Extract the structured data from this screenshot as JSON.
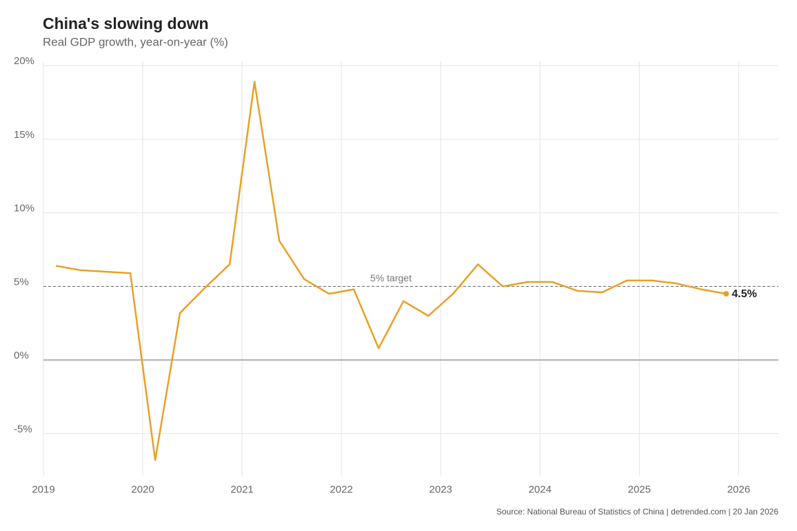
{
  "chart_data": {
    "type": "line",
    "title": "China's slowing down",
    "subtitle": "Real GDP growth, year-on-year (%)",
    "source": "Source: National Bureau of Statistics of China | detrended.com | 20 Jan 2026",
    "x": [
      2019.125,
      2019.375,
      2019.625,
      2019.875,
      2020.125,
      2020.375,
      2020.625,
      2020.875,
      2021.125,
      2021.375,
      2021.625,
      2021.875,
      2022.125,
      2022.375,
      2022.625,
      2022.875,
      2023.125,
      2023.375,
      2023.625,
      2023.875,
      2024.125,
      2024.375,
      2024.625,
      2024.875,
      2025.125,
      2025.375,
      2025.625,
      2025.875
    ],
    "series": [
      {
        "name": "Real GDP growth",
        "color": "#e8a025",
        "values": [
          6.4,
          6.1,
          6.0,
          5.9,
          -6.8,
          3.2,
          4.9,
          6.5,
          18.9,
          8.1,
          5.5,
          4.5,
          4.8,
          0.8,
          4.0,
          3.0,
          4.5,
          6.5,
          5.0,
          5.3,
          5.3,
          4.7,
          4.6,
          5.4,
          5.4,
          5.2,
          4.8,
          4.5
        ]
      }
    ],
    "last_label": "4.5%",
    "reference_line": {
      "value": 5,
      "label": "5% target"
    },
    "xlim": [
      2019,
      2026.4
    ],
    "xticks": [
      2019,
      2020,
      2021,
      2022,
      2023,
      2024,
      2025,
      2026
    ],
    "ylim": [
      -7.9,
      20.3
    ],
    "yticks": [
      {
        "value": -5,
        "label": "-5%"
      },
      {
        "value": 0,
        "label": "0%"
      },
      {
        "value": 5,
        "label": "5%"
      },
      {
        "value": 10,
        "label": "10%"
      },
      {
        "value": 15,
        "label": "15%"
      },
      {
        "value": 20,
        "label": "20%"
      }
    ],
    "grid": true
  }
}
